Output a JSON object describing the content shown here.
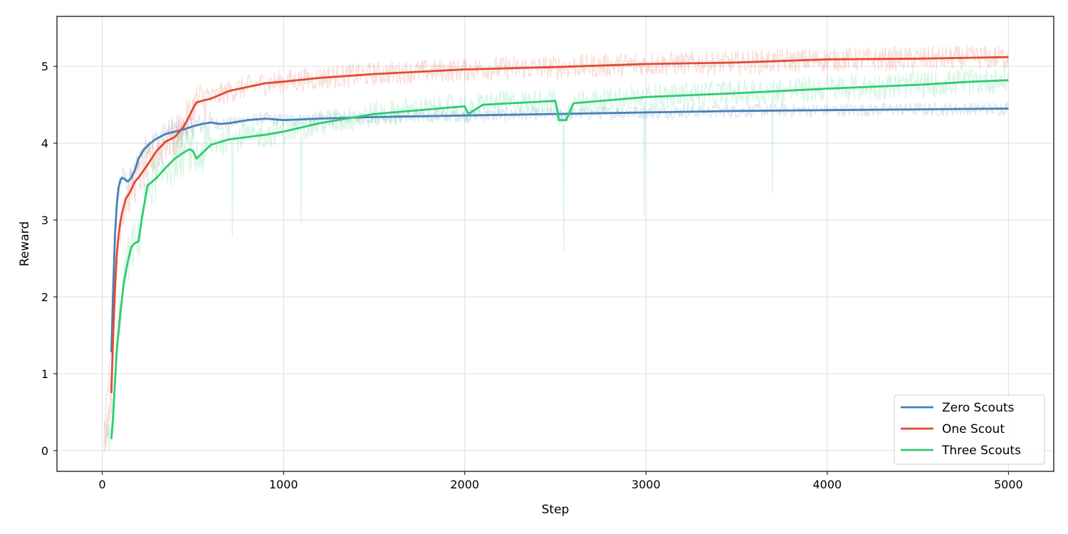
{
  "chart_data": {
    "type": "line",
    "title": "",
    "xlabel": "Step",
    "ylabel": "Reward",
    "xlim": [
      -250,
      5250
    ],
    "ylim": [
      -0.27,
      5.65
    ],
    "xticks": [
      0,
      1000,
      2000,
      3000,
      4000,
      5000
    ],
    "yticks": [
      0,
      1,
      2,
      3,
      4,
      5
    ],
    "grid": true,
    "legend_position": "lower-right",
    "raw_series_shown": "faint noisy raw curves behind each smoothed line",
    "series": [
      {
        "name": "Zero Scouts",
        "color": "#4682b4",
        "x": [
          50,
          60,
          70,
          80,
          90,
          100,
          110,
          120,
          140,
          160,
          180,
          200,
          230,
          260,
          300,
          350,
          400,
          450,
          500,
          550,
          600,
          650,
          700,
          800,
          900,
          1000,
          1200,
          1500,
          2000,
          2500,
          3000,
          3500,
          4000,
          4500,
          5000
        ],
        "values": [
          1.28,
          2.1,
          2.8,
          3.2,
          3.42,
          3.52,
          3.55,
          3.54,
          3.5,
          3.55,
          3.65,
          3.8,
          3.92,
          3.99,
          4.06,
          4.12,
          4.15,
          4.18,
          4.22,
          4.25,
          4.27,
          4.25,
          4.26,
          4.3,
          4.32,
          4.3,
          4.32,
          4.34,
          4.36,
          4.38,
          4.4,
          4.42,
          4.43,
          4.44,
          4.45
        ]
      },
      {
        "name": "One Scout",
        "color": "#e24a33",
        "x": [
          50,
          60,
          70,
          80,
          90,
          100,
          110,
          130,
          150,
          180,
          200,
          250,
          300,
          350,
          400,
          450,
          480,
          500,
          520,
          550,
          600,
          700,
          800,
          900,
          1000,
          1200,
          1500,
          2000,
          2500,
          3000,
          3500,
          4000,
          4500,
          5000
        ],
        "values": [
          0.75,
          1.5,
          2.1,
          2.55,
          2.8,
          2.98,
          3.1,
          3.28,
          3.35,
          3.5,
          3.55,
          3.72,
          3.9,
          4.02,
          4.08,
          4.22,
          4.35,
          4.45,
          4.53,
          4.55,
          4.58,
          4.68,
          4.73,
          4.78,
          4.8,
          4.85,
          4.9,
          4.96,
          4.99,
          5.03,
          5.05,
          5.09,
          5.1,
          5.12
        ]
      },
      {
        "name": "Three Scouts",
        "color": "#2ecc71",
        "x": [
          50,
          60,
          70,
          80,
          100,
          120,
          140,
          160,
          180,
          200,
          220,
          250,
          300,
          350,
          400,
          450,
          480,
          500,
          520,
          600,
          700,
          800,
          900,
          1000,
          1200,
          1500,
          1800,
          2000,
          2020,
          2100,
          2500,
          2520,
          2560,
          2600,
          3000,
          3500,
          4000,
          4500,
          4800,
          4900,
          5000
        ],
        "values": [
          0.15,
          0.45,
          0.9,
          1.3,
          1.8,
          2.2,
          2.45,
          2.65,
          2.7,
          2.72,
          3.05,
          3.45,
          3.55,
          3.68,
          3.8,
          3.88,
          3.92,
          3.9,
          3.8,
          3.98,
          4.05,
          4.08,
          4.11,
          4.15,
          4.26,
          4.38,
          4.44,
          4.48,
          4.38,
          4.5,
          4.55,
          4.3,
          4.3,
          4.52,
          4.6,
          4.65,
          4.71,
          4.76,
          4.8,
          4.81,
          4.82
        ]
      }
    ]
  }
}
